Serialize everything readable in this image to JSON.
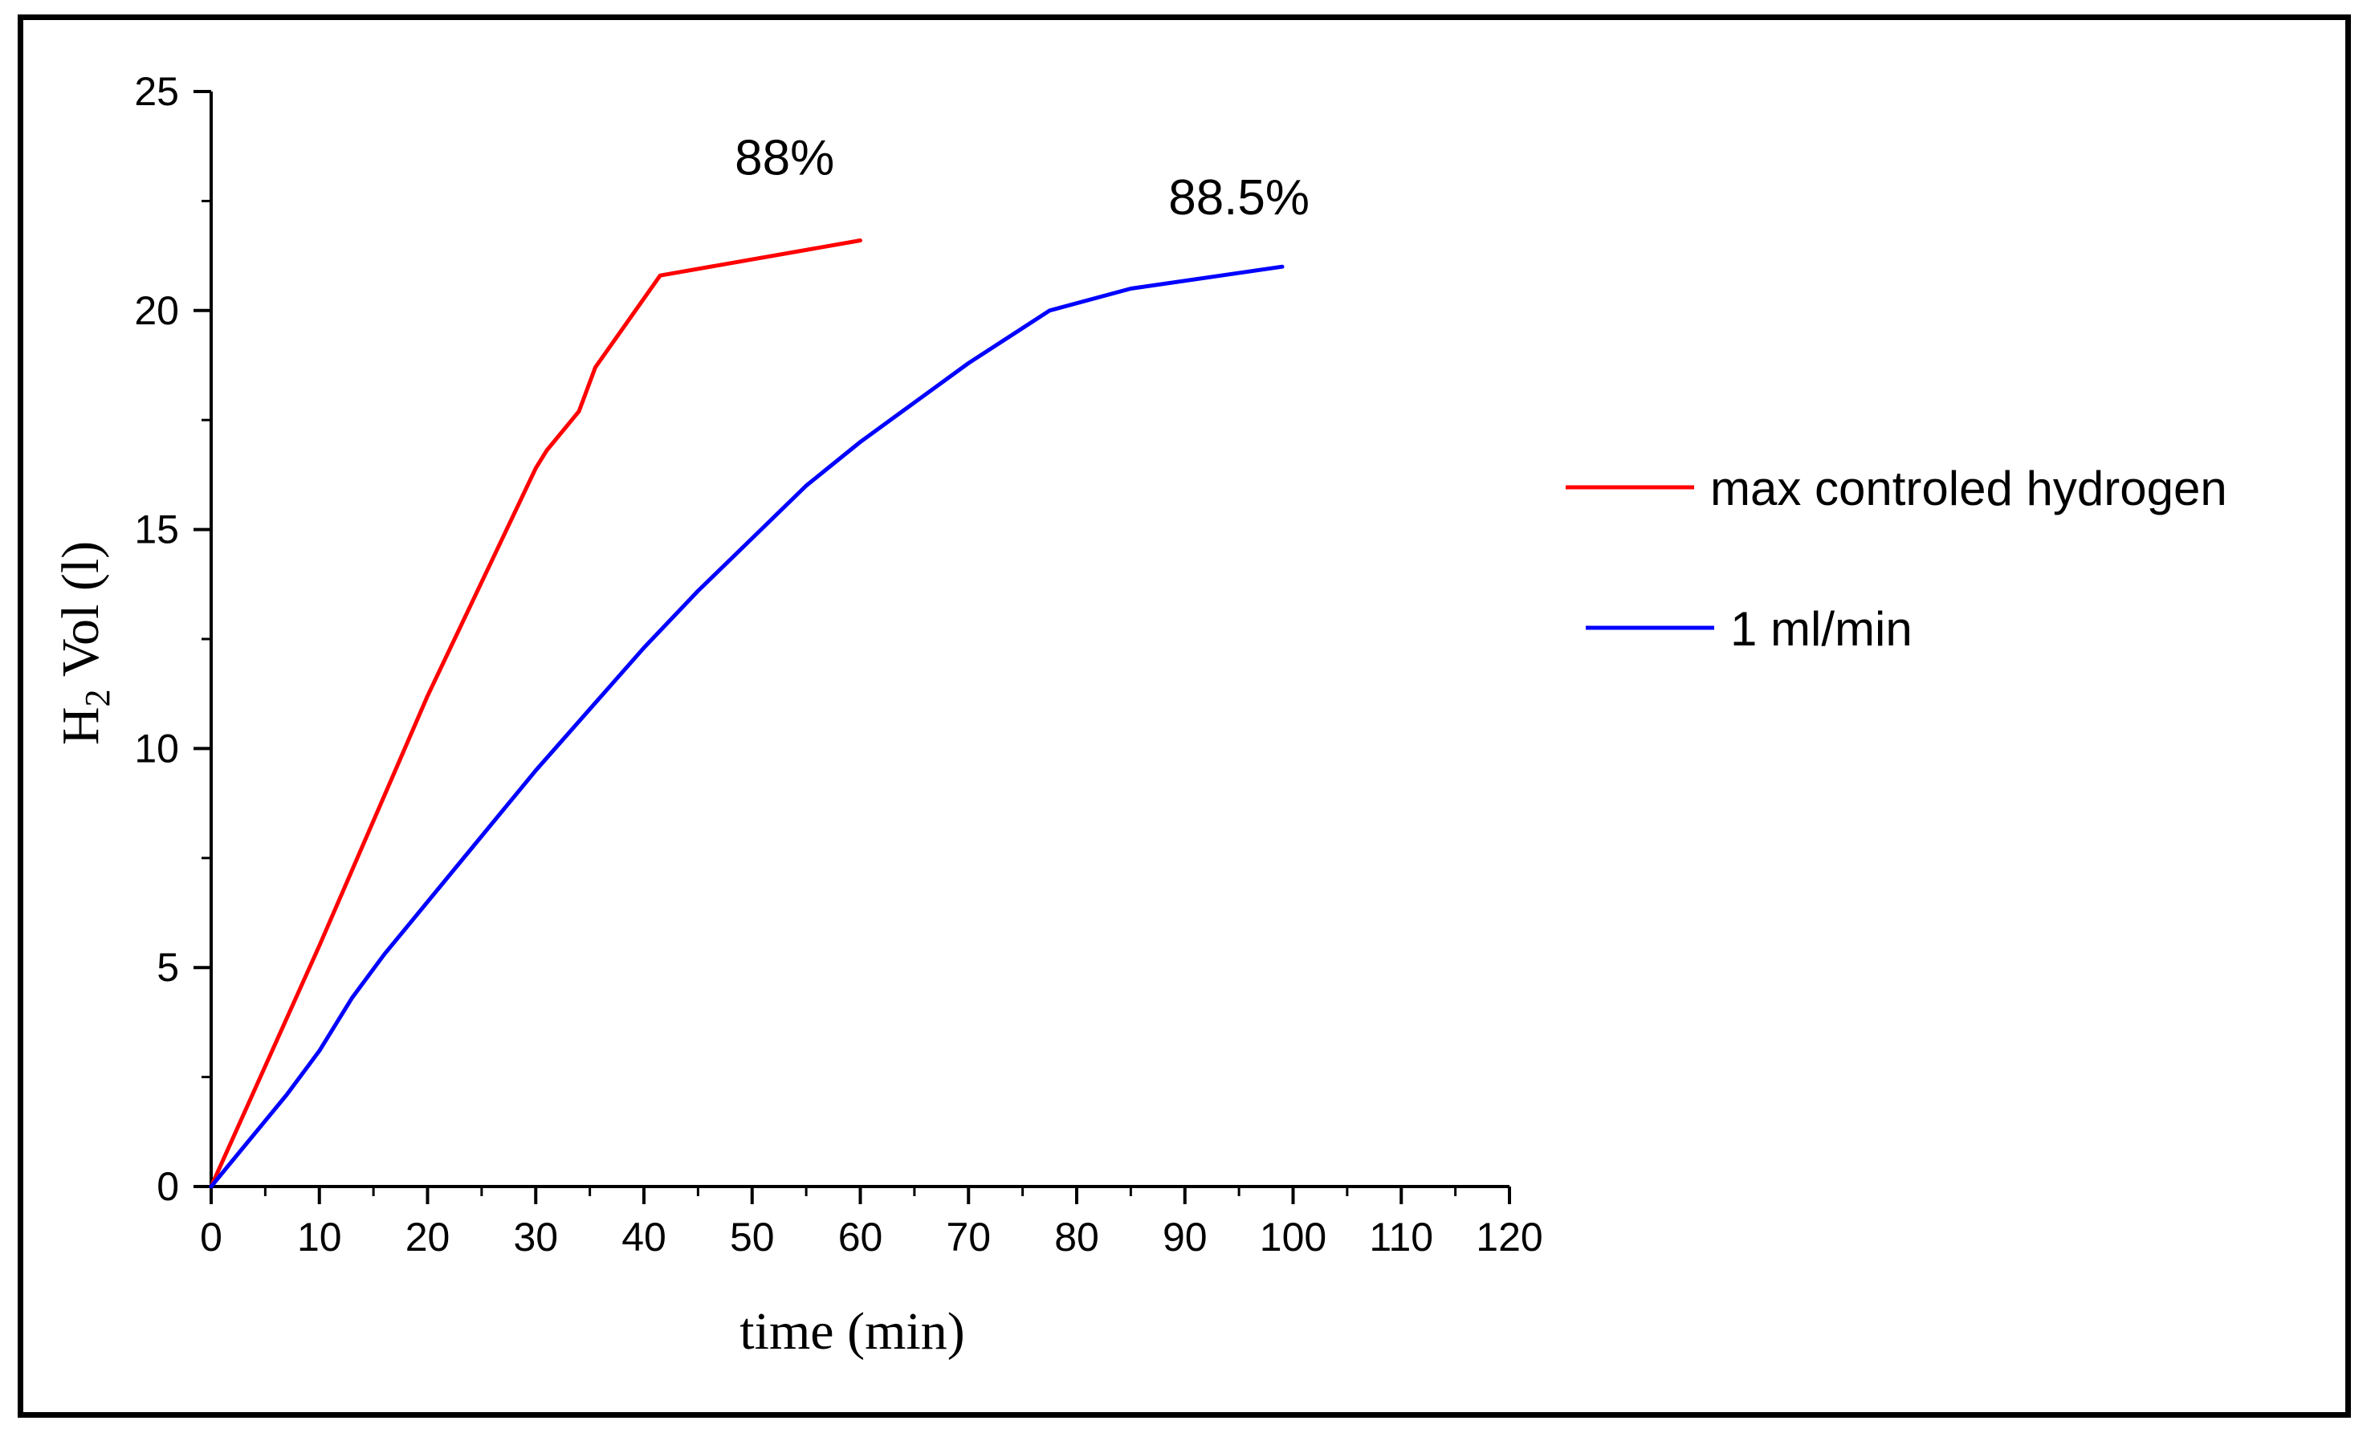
{
  "chart_data": {
    "type": "line",
    "title": "",
    "xlabel": "time (min)",
    "ylabel_main": "H",
    "ylabel_sub": "2",
    "ylabel_rest": " Vol (l)",
    "xlim": [
      0,
      120
    ],
    "ylim": [
      0,
      25
    ],
    "xticks": [
      0,
      10,
      20,
      30,
      40,
      50,
      60,
      70,
      80,
      90,
      100,
      110,
      120
    ],
    "yticks": [
      0,
      5,
      10,
      15,
      20,
      25
    ],
    "grid": false,
    "legend_position": "right",
    "series": [
      {
        "name": "max controled hydrogen",
        "color": "#ff0000",
        "x": [
          0,
          10,
          20,
          30,
          31,
          34,
          35.5,
          41.5,
          60
        ],
        "y": [
          0,
          5.5,
          11.2,
          16.4,
          16.8,
          17.7,
          18.7,
          20.8,
          21.6
        ]
      },
      {
        "name": "1 ml/min",
        "color": "#0000ff",
        "x": [
          0,
          3,
          7,
          10,
          13,
          16,
          20,
          25,
          30,
          35,
          40,
          45,
          50,
          55,
          60,
          70,
          77.5,
          85,
          99
        ],
        "y": [
          0,
          0.9,
          2.1,
          3.1,
          4.3,
          5.3,
          6.5,
          8.0,
          9.5,
          10.9,
          12.3,
          13.6,
          14.8,
          16.0,
          17.0,
          18.8,
          20.0,
          20.5,
          21.0
        ]
      }
    ],
    "annotations": [
      {
        "text": "88%",
        "x": 53,
        "y": 23.1
      },
      {
        "text": "88.5%",
        "x": 95,
        "y": 22.2
      }
    ]
  }
}
